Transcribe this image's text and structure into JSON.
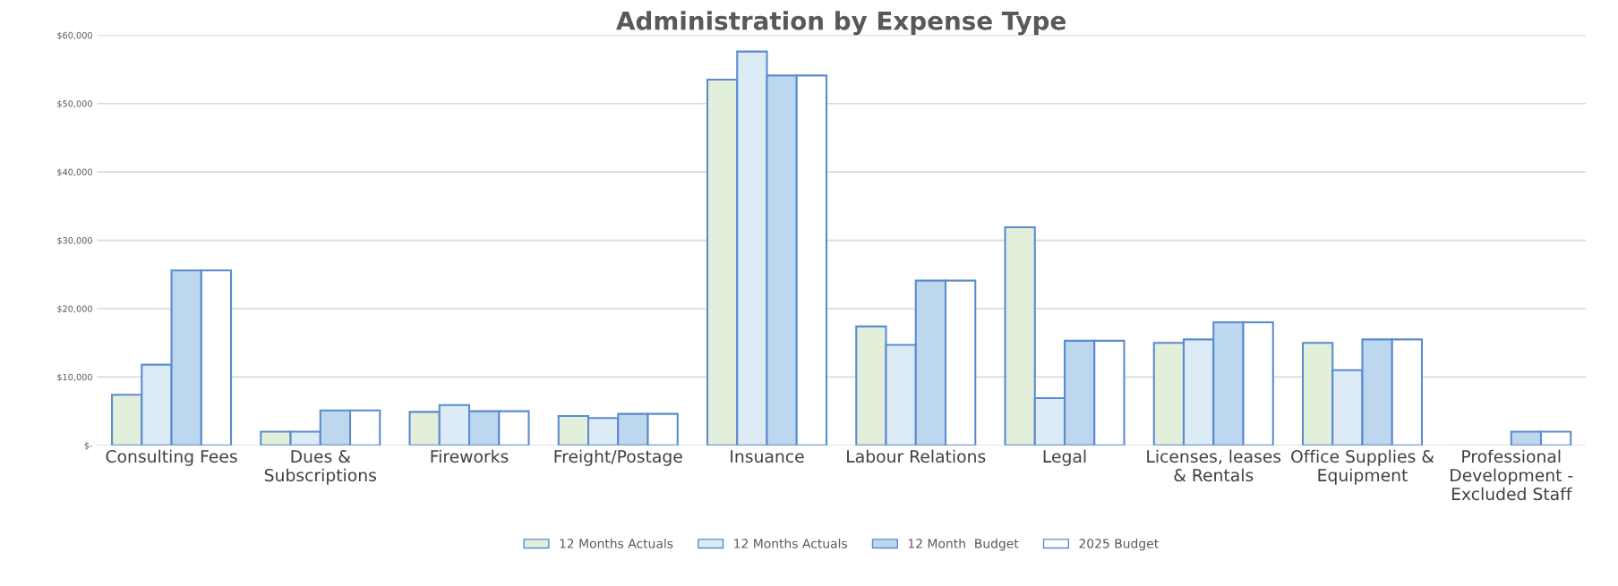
{
  "chart_data": {
    "type": "bar",
    "title": "Administration by Expense Type",
    "categories": [
      "Consulting Fees",
      "Dues &\nSubscriptions",
      "Fireworks",
      "Freight/Postage",
      "Insuance",
      "Labour Relations",
      "Legal",
      "Licenses, leases\n& Rentals",
      "Office Supplies &\nEquipment",
      "Professional\nDevelopment -\nExcluded Staff"
    ],
    "series": [
      {
        "name": "12 Months Actuals",
        "color": "#e2efda",
        "values": [
          7400,
          2000,
          4900,
          4300,
          53500,
          17400,
          31900,
          15000,
          15000,
          0
        ]
      },
      {
        "name": "12 Months Actuals",
        "color": "#ddebf7",
        "values": [
          11800,
          2000,
          5900,
          4000,
          57600,
          14700,
          6900,
          15500,
          11000,
          0
        ]
      },
      {
        "name": "12 Month  Budget",
        "color": "#bdd7ee",
        "values": [
          25600,
          5100,
          5000,
          4600,
          54100,
          24100,
          15300,
          18000,
          15500,
          2000
        ]
      },
      {
        "name": "2025 Budget",
        "color": "#ffffff",
        "values": [
          25600,
          5100,
          5000,
          4600,
          54100,
          24100,
          15300,
          18000,
          15500,
          2000
        ]
      }
    ],
    "ylim": [
      0,
      60000
    ],
    "yticks": [
      {
        "value": 0,
        "label": "$-"
      },
      {
        "value": 10000,
        "label": "$10,000"
      },
      {
        "value": 20000,
        "label": "$20,000"
      },
      {
        "value": 30000,
        "label": "$30,000"
      },
      {
        "value": 40000,
        "label": "$40,000"
      },
      {
        "value": 50000,
        "label": "$50,000"
      },
      {
        "value": 60000,
        "label": "$60,000"
      }
    ],
    "grid": "y",
    "legend": "bottom"
  }
}
